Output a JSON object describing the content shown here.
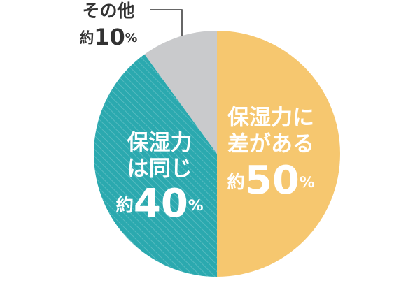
{
  "chart_data": {
    "type": "pie",
    "categories": [
      [
        "保湿力に",
        "差がある"
      ],
      [
        "保湿力",
        "は同じ"
      ],
      [
        "その他"
      ]
    ],
    "values": [
      50,
      40,
      10
    ],
    "value_labels": [
      "約50%",
      "約40%",
      "約10%"
    ],
    "colors": [
      "#f6c76f",
      "#2ba9af",
      "#c9cacc"
    ],
    "hatched": [
      false,
      true,
      false
    ]
  }
}
